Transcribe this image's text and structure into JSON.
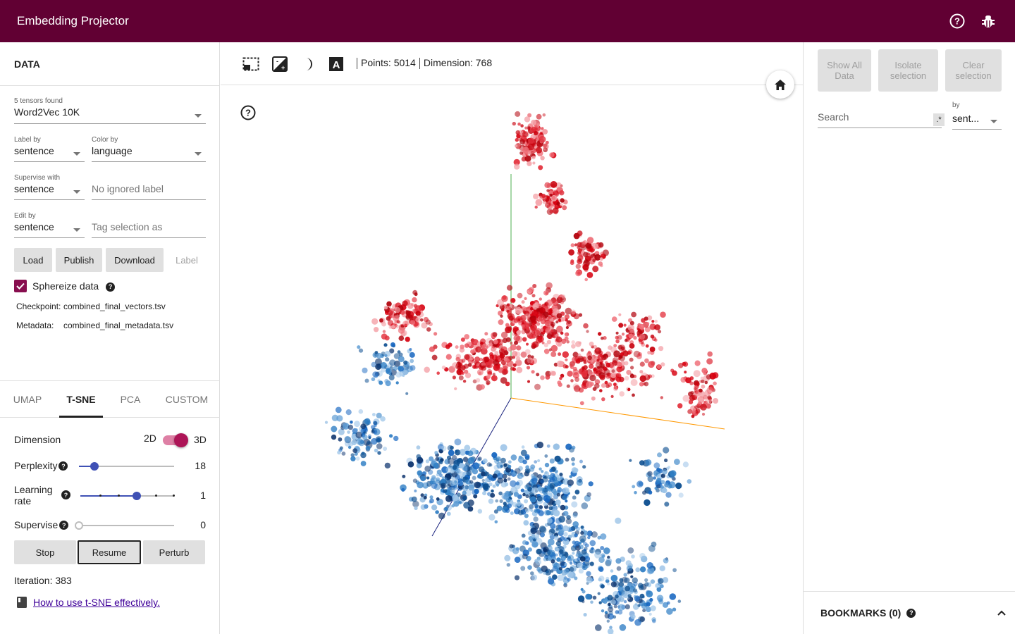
{
  "app": {
    "title": "Embedding Projector",
    "icons": [
      "help-circle-icon",
      "bug-icon"
    ]
  },
  "data_panel": {
    "heading": "DATA",
    "tensors_label": "5 tensors found",
    "tensor_value": "Word2Vec 10K",
    "label_by_label": "Label by",
    "label_by_value": "sentence",
    "color_by_label": "Color by",
    "color_by_value": "language",
    "supervise_with_label": "Supervise with",
    "supervise_with_value": "sentence",
    "ignored_label_placeholder": "No ignored label",
    "edit_by_label": "Edit by",
    "edit_by_value": "sentence",
    "tag_placeholder": "Tag selection as",
    "buttons": {
      "load": "Load",
      "publish": "Publish",
      "download": "Download",
      "label": "Label"
    },
    "sphereize_label": "Sphereize data",
    "sphereize_checked": true,
    "checkpoint_label": "Checkpoint:",
    "checkpoint_value": "combined_final_vectors.tsv",
    "metadata_label": "Metadata:",
    "metadata_value": "combined_final_metadata.tsv"
  },
  "projection_tabs": [
    {
      "label": "UMAP",
      "active": false
    },
    {
      "label": "T-SNE",
      "active": true
    },
    {
      "label": "PCA",
      "active": false
    },
    {
      "label": "CUSTOM",
      "active": false
    }
  ],
  "tsne": {
    "dimension_label": "Dimension",
    "dim_2d": "2D",
    "dim_3d": "3D",
    "dimension_3d_on": true,
    "perplexity_label": "Perplexity",
    "perplexity_value": "18",
    "perplexity_fraction": 0.16,
    "learning_rate_label_1": "Learning",
    "learning_rate_label_2": "rate",
    "learning_rate_value": "1",
    "learning_rate_fraction": 0.6,
    "supervise_label": "Supervise",
    "supervise_value": "0",
    "supervise_fraction": 0,
    "stop_button": "Stop",
    "resume_button": "Resume",
    "perturb_button": "Perturb",
    "iteration_text": "Iteration: 383",
    "help_link": "How to use t-SNE effectively."
  },
  "toolbar": {
    "icons": [
      "select-box-icon",
      "night-mode-icon",
      "contrast-icon",
      "label-a-icon"
    ],
    "points_text": "Points: 5014",
    "dimension_text": "Dimension: 768"
  },
  "plot": {
    "colors": {
      "red": "#d7000f",
      "blue": "#0a5aa5",
      "axis_green": "#4caf50",
      "axis_orange": "#ff9800",
      "axis_blue": "#1a237e"
    }
  },
  "inspector": {
    "show_all": "Show All Data",
    "isolate": "Isolate selection",
    "clear": "Clear selection",
    "search_placeholder": "Search",
    "regex_toggle": ".*",
    "by_label": "by",
    "by_value": "sent...",
    "bookmarks_label": "BOOKMARKS (0)"
  },
  "colors": {
    "header_bg": "#610033",
    "checkbox": "#880e4f",
    "slider": "#3f51b5",
    "toggle": "#ad1457"
  }
}
